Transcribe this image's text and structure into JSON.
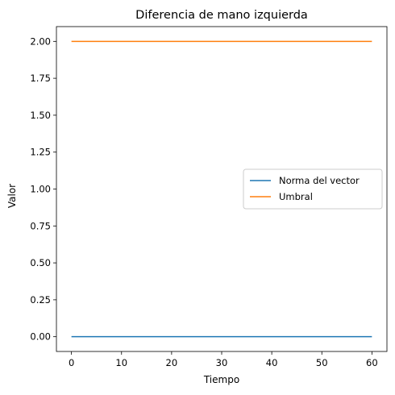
{
  "chart_data": {
    "type": "line",
    "title": "Diferencia de mano izquierda",
    "xlabel": "Tiempo",
    "ylabel": "Valor",
    "xlim": [
      -3,
      63
    ],
    "ylim": [
      -0.1,
      2.1
    ],
    "xticks": [
      0,
      10,
      20,
      30,
      40,
      50,
      60
    ],
    "xtick_labels": [
      "0",
      "10",
      "20",
      "30",
      "40",
      "50",
      "60"
    ],
    "yticks": [
      0,
      0.25,
      0.5,
      0.75,
      1.0,
      1.25,
      1.5,
      1.75,
      2.0
    ],
    "ytick_labels": [
      "0.00",
      "0.25",
      "0.50",
      "0.75",
      "1.00",
      "1.25",
      "1.50",
      "1.75",
      "2.00"
    ],
    "grid": false,
    "legend_position": "center-right",
    "series": [
      {
        "name": "Norma del vector",
        "color": "#1f77b4",
        "x": [
          0,
          60
        ],
        "y": [
          0,
          0
        ]
      },
      {
        "name": "Umbral",
        "color": "#ff7f0e",
        "x": [
          0,
          60
        ],
        "y": [
          2,
          2
        ]
      }
    ]
  }
}
